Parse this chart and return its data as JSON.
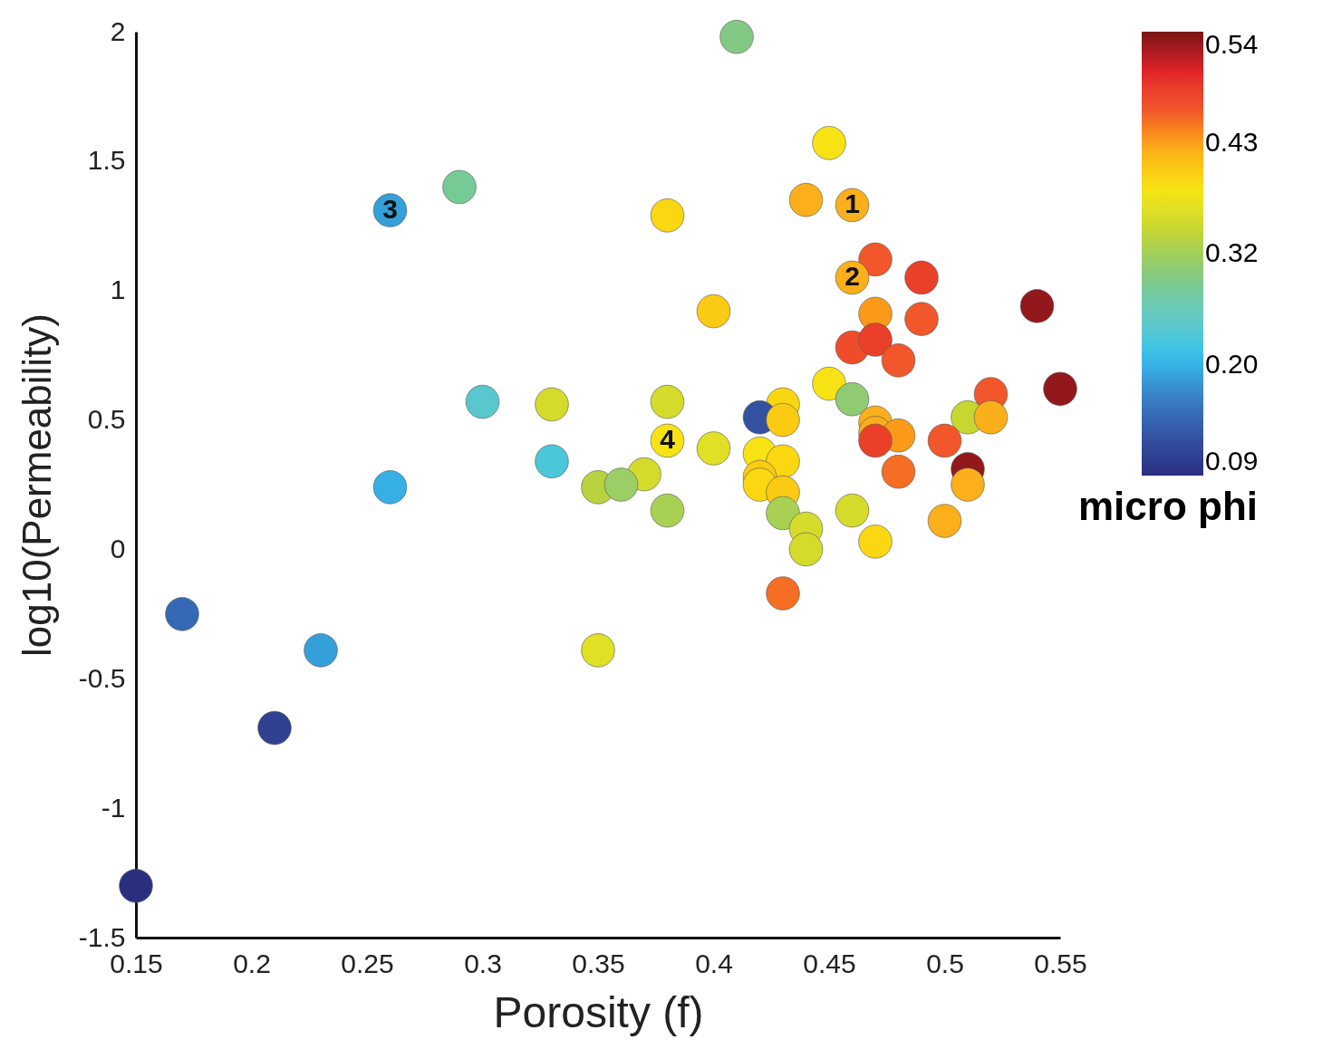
{
  "chart_data": {
    "type": "scatter",
    "xlabel": "Porosity (f)",
    "ylabel": "log10(Permeability)",
    "clabel": "micro phi",
    "x": [
      0.41,
      0.45,
      0.44,
      0.46,
      0.38,
      0.29,
      0.26,
      0.47,
      0.46,
      0.49,
      0.4,
      0.54,
      0.47,
      0.49,
      0.46,
      0.47,
      0.48,
      0.45,
      0.55,
      0.52,
      0.46,
      0.3,
      0.33,
      0.38,
      0.43,
      0.42,
      0.43,
      0.51,
      0.52,
      0.47,
      0.47,
      0.48,
      0.47,
      0.38,
      0.5,
      0.4,
      0.42,
      0.43,
      0.33,
      0.51,
      0.48,
      0.37,
      0.26,
      0.35,
      0.36,
      0.42,
      0.42,
      0.43,
      0.51,
      0.38,
      0.43,
      0.46,
      0.44,
      0.5,
      0.44,
      0.47,
      0.43,
      0.17,
      0.23,
      0.35,
      0.21,
      0.15
    ],
    "values": [
      1.98,
      1.57,
      1.35,
      1.33,
      1.29,
      1.4,
      1.31,
      1.12,
      1.05,
      1.05,
      0.92,
      0.94,
      0.91,
      0.89,
      0.78,
      0.81,
      0.73,
      0.64,
      0.62,
      0.6,
      0.58,
      0.57,
      0.56,
      0.57,
      0.56,
      0.51,
      0.5,
      0.51,
      0.51,
      0.49,
      0.45,
      0.44,
      0.42,
      0.42,
      0.42,
      0.39,
      0.37,
      0.34,
      0.34,
      0.31,
      0.3,
      0.29,
      0.24,
      0.24,
      0.25,
      0.28,
      0.25,
      0.22,
      0.25,
      0.15,
      0.14,
      0.15,
      0.08,
      0.11,
      0.0,
      0.03,
      -0.17,
      -0.25,
      -0.39,
      -0.39,
      -0.69,
      -1.3
    ],
    "cvalues": [
      0.29,
      0.38,
      0.42,
      0.42,
      0.39,
      0.28,
      0.19,
      0.46,
      0.42,
      0.48,
      0.4,
      0.53,
      0.43,
      0.46,
      0.47,
      0.48,
      0.46,
      0.38,
      0.53,
      0.46,
      0.3,
      0.24,
      0.35,
      0.35,
      0.39,
      0.13,
      0.4,
      0.34,
      0.42,
      0.42,
      0.42,
      0.43,
      0.48,
      0.38,
      0.46,
      0.36,
      0.38,
      0.39,
      0.23,
      0.53,
      0.45,
      0.35,
      0.2,
      0.33,
      0.31,
      0.4,
      0.39,
      0.4,
      0.42,
      0.32,
      0.32,
      0.35,
      0.35,
      0.42,
      0.35,
      0.39,
      0.45,
      0.15,
      0.19,
      0.36,
      0.11,
      0.09
    ],
    "xlim": [
      0.15,
      0.55
    ],
    "xticks": [
      0.15,
      0.2,
      0.25,
      0.3,
      0.35,
      0.4,
      0.45,
      0.5,
      0.55
    ],
    "ylim": [
      -1.5,
      2
    ],
    "yticks": [
      -1.5,
      -1,
      -0.5,
      0,
      0.5,
      1,
      1.5,
      2
    ],
    "clim": [
      0.09,
      0.54
    ],
    "cticks": [
      0.09,
      {
        "value": 0.2025,
        "label": "0.20"
      },
      {
        "value": 0.315,
        "label": "0.32"
      },
      {
        "value": 0.4275,
        "label": "0.43"
      },
      0.54
    ],
    "marker": "circle",
    "grid": false,
    "annotations": [
      {
        "text": "1",
        "x": 0.46,
        "y": 1.33
      },
      {
        "text": "2",
        "x": 0.46,
        "y": 1.05
      },
      {
        "text": "3",
        "x": 0.26,
        "y": 1.31
      },
      {
        "text": "4",
        "x": 0.38,
        "y": 0.42
      }
    ]
  }
}
